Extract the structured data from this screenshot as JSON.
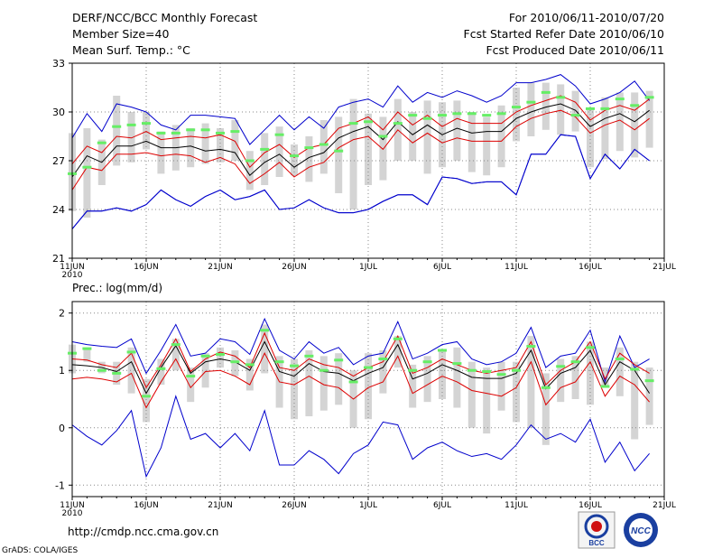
{
  "header": {
    "title": "DERF/NCC/BCC Monthly Forecast",
    "member_size": "Member Size=40",
    "variable": "Mean Surf. Temp.: °C",
    "period": "For 2010/06/11-2010/07/20",
    "started": "Fcst Started Refer Date 2010/06/10",
    "produced": "Fcst Produced Date 2010/06/11"
  },
  "footer": {
    "url": "http://cmdp.ncc.cma.gov.cn",
    "grads": "GrADS: COLA/IGES",
    "logo_bcc": "BCC",
    "logo_ncc": "NCC"
  },
  "colors": {
    "box": "#d4d4d4",
    "median": "#66ee66",
    "max_min": "#0000cc",
    "std": "#dd0000",
    "mean": "#000000",
    "grid": "#888888"
  },
  "chart_data": [
    {
      "type": "line",
      "title": "Mean Surf. Temp.: °C",
      "xtick_labels": [
        "11JUN",
        "16JUN",
        "21JUN",
        "26JUN",
        "1JUL",
        "6JUL",
        "11JUL",
        "16JUL",
        "21JUL"
      ],
      "year_label": "2010",
      "ylim": [
        21,
        33
      ],
      "yticks": [
        21,
        24,
        27,
        30,
        33
      ],
      "days": 40,
      "series": [
        {
          "name": "max",
          "values": [
            22.8,
            23.9,
            23.9,
            24.1,
            23.9,
            24.3,
            25.2,
            24.6,
            24.2,
            24.8,
            25.2,
            24.6,
            24.8,
            25.2,
            24.0,
            24.1,
            24.6,
            24.1,
            23.8,
            23.8,
            24.0,
            24.5,
            24.9,
            24.9,
            24.3,
            26.0,
            25.9,
            25.6,
            25.7,
            25.7,
            24.9,
            27.4,
            27.4,
            28.6,
            28.5,
            25.9,
            27.4,
            26.5,
            27.7,
            27.0
          ]
        },
        {
          "name": "max_upper",
          "values": [
            28.4,
            29.9,
            28.8,
            30.5,
            30.3,
            30.0,
            29.2,
            28.9,
            29.8,
            29.8,
            29.7,
            29.6,
            28.0,
            28.9,
            29.8,
            28.9,
            29.7,
            29.0,
            30.3,
            30.6,
            30.8,
            30.3,
            31.6,
            30.6,
            31.2,
            30.9,
            31.3,
            31.0,
            30.6,
            31.0,
            31.8,
            31.8,
            32.0,
            32.3,
            31.6,
            30.5,
            30.8,
            31.2,
            31.9,
            30.7
          ]
        },
        {
          "name": "min_lower",
          "values": [
            22.8,
            23.9,
            23.9,
            24.1,
            23.9,
            24.3,
            25.2,
            24.6,
            24.2,
            24.8,
            25.2,
            24.6,
            24.8,
            25.2,
            24.0,
            24.1,
            24.6,
            24.1,
            23.8,
            23.8,
            24.0,
            24.5,
            24.9,
            24.9,
            24.3,
            26.0,
            25.9,
            25.6,
            25.7,
            25.7,
            24.9,
            27.4,
            27.4,
            28.6,
            28.5,
            25.9,
            27.4,
            26.5,
            27.7,
            27.0
          ]
        },
        {
          "name": "mean_plus_std",
          "values": [
            26.8,
            27.9,
            27.5,
            28.5,
            28.4,
            28.8,
            28.3,
            28.4,
            28.5,
            28.4,
            28.6,
            28.2,
            26.6,
            27.5,
            28.0,
            27.2,
            27.8,
            28.0,
            29.0,
            29.3,
            29.7,
            28.9,
            30.0,
            29.2,
            29.8,
            29.1,
            29.6,
            29.3,
            29.3,
            29.3,
            30.0,
            30.4,
            30.7,
            31.0,
            30.6,
            29.5,
            30.1,
            30.4,
            30.1,
            30.8
          ]
        },
        {
          "name": "mean",
          "values": [
            26.0,
            27.3,
            26.9,
            27.9,
            27.9,
            28.2,
            27.8,
            27.8,
            27.9,
            27.6,
            27.7,
            27.5,
            26.1,
            26.9,
            27.4,
            26.6,
            27.2,
            27.5,
            28.4,
            28.8,
            29.1,
            28.3,
            29.4,
            28.6,
            29.2,
            28.6,
            29.0,
            28.7,
            28.8,
            28.8,
            29.6,
            30.0,
            30.3,
            30.5,
            30.1,
            29.1,
            29.6,
            29.9,
            29.4,
            30.1
          ]
        },
        {
          "name": "mean_minus_std",
          "values": [
            25.2,
            26.6,
            26.4,
            27.4,
            27.4,
            27.5,
            27.3,
            27.4,
            27.3,
            26.9,
            27.2,
            26.8,
            25.6,
            26.2,
            26.9,
            26.0,
            26.6,
            26.9,
            27.8,
            28.3,
            28.5,
            27.7,
            28.9,
            28.1,
            28.7,
            28.1,
            28.4,
            28.2,
            28.2,
            28.2,
            29.1,
            29.6,
            29.9,
            30.1,
            29.7,
            28.7,
            29.2,
            29.5,
            28.9,
            29.6
          ]
        }
      ],
      "box_low": [
        23.9,
        23.5,
        25.5,
        26.7,
        26.9,
        27.7,
        26.2,
        26.4,
        26.6,
        26.8,
        26.9,
        27.0,
        25.2,
        25.5,
        26.0,
        26.1,
        25.7,
        26.2,
        25.0,
        24.0,
        25.5,
        25.8,
        27.0,
        27.0,
        26.2,
        26.6,
        27.0,
        26.3,
        26.1,
        26.6,
        28.2,
        28.5,
        28.9,
        28.6,
        28.8,
        26.6,
        27.1,
        27.6,
        27.2,
        27.8
      ],
      "box_high": [
        28.7,
        29.0,
        28.3,
        31.0,
        30.0,
        30.0,
        28.8,
        29.2,
        29.0,
        29.3,
        29.0,
        29.5,
        27.6,
        28.7,
        29.1,
        28.0,
        28.5,
        29.5,
        29.7,
        30.8,
        29.9,
        29.7,
        30.8,
        30.0,
        30.7,
        30.6,
        30.7,
        30.0,
        29.7,
        30.4,
        31.5,
        31.8,
        31.8,
        31.7,
        31.3,
        30.2,
        30.9,
        31.2,
        31.2,
        31.3
      ],
      "median": [
        26.2,
        26.6,
        28.1,
        29.1,
        29.2,
        29.3,
        28.7,
        28.7,
        28.9,
        28.9,
        28.7,
        28.8,
        27.0,
        27.7,
        28.6,
        27.3,
        27.8,
        28.0,
        27.6,
        29.3,
        29.4,
        28.5,
        29.3,
        29.8,
        29.6,
        29.8,
        29.9,
        29.9,
        29.8,
        29.9,
        30.3,
        30.6,
        31.2,
        30.9,
        29.8,
        30.2,
        30.2,
        30.8,
        30.4,
        30.9
      ]
    },
    {
      "type": "line",
      "title": "Prec.: log(mm/d)",
      "xtick_labels": [
        "11JUN",
        "16JUN",
        "21JUN",
        "26JUN",
        "1JUL",
        "6JUL",
        "11JUL",
        "16JUL",
        "21JUL"
      ],
      "year_label": "2010",
      "ylim": [
        -1.2,
        2.2
      ],
      "yticks": [
        -1,
        0,
        1,
        2
      ],
      "days": 40,
      "series": [
        {
          "name": "max",
          "values": [
            1.5,
            1.45,
            1.42,
            1.4,
            1.55,
            0.95,
            1.35,
            1.8,
            1.25,
            1.3,
            1.55,
            1.5,
            1.28,
            1.9,
            1.35,
            1.2,
            1.5,
            1.3,
            1.4,
            1.1,
            1.25,
            1.3,
            1.85,
            1.2,
            1.3,
            1.45,
            1.5,
            1.2,
            1.1,
            1.15,
            1.3,
            1.75,
            1.05,
            1.25,
            1.3,
            1.7,
            0.8,
            1.6,
            1.05,
            1.2
          ]
        },
        {
          "name": "mean_plus_std",
          "values": [
            1.2,
            1.18,
            1.1,
            1.05,
            1.3,
            0.7,
            1.1,
            1.55,
            0.98,
            1.2,
            1.32,
            1.25,
            1.05,
            1.65,
            1.05,
            1.0,
            1.2,
            1.1,
            1.05,
            0.9,
            1.05,
            1.15,
            1.6,
            0.95,
            1.05,
            1.2,
            1.1,
            1.0,
            0.95,
            1.0,
            1.05,
            1.5,
            0.75,
            1.0,
            1.15,
            1.5,
            0.85,
            1.3,
            1.1,
            0.95
          ]
        },
        {
          "name": "mean",
          "values": [
            1.1,
            1.08,
            1.05,
            0.98,
            1.15,
            0.6,
            1.05,
            1.43,
            0.95,
            1.15,
            1.2,
            1.15,
            1.0,
            1.5,
            0.98,
            0.9,
            1.12,
            0.98,
            0.95,
            0.82,
            0.95,
            1.05,
            1.45,
            0.85,
            0.95,
            1.1,
            1.0,
            0.88,
            0.86,
            0.86,
            0.95,
            1.35,
            0.68,
            0.95,
            1.05,
            1.35,
            0.75,
            1.15,
            1.0,
            0.6
          ]
        },
        {
          "name": "mean_minus_std",
          "values": [
            0.85,
            0.88,
            0.85,
            0.8,
            0.95,
            0.35,
            0.8,
            1.2,
            0.7,
            0.98,
            1.0,
            0.9,
            0.75,
            1.3,
            0.8,
            0.75,
            0.9,
            0.75,
            0.7,
            0.5,
            0.7,
            0.8,
            1.25,
            0.6,
            0.75,
            0.9,
            0.8,
            0.65,
            0.6,
            0.55,
            0.7,
            1.15,
            0.4,
            0.7,
            0.8,
            1.15,
            0.55,
            0.9,
            0.75,
            0.45
          ]
        },
        {
          "name": "min",
          "values": [
            0.05,
            -0.15,
            -0.3,
            -0.05,
            0.3,
            -0.85,
            -0.35,
            0.55,
            -0.2,
            -0.1,
            -0.35,
            -0.1,
            -0.4,
            0.3,
            -0.65,
            -0.65,
            -0.4,
            -0.55,
            -0.8,
            -0.45,
            -0.3,
            0.1,
            0.05,
            -0.55,
            -0.35,
            -0.25,
            -0.4,
            -0.5,
            -0.45,
            -0.55,
            -0.3,
            0.05,
            -0.2,
            -0.1,
            -0.25,
            0.15,
            -0.6,
            -0.25,
            -0.75,
            -0.45
          ]
        }
      ],
      "box_low": [
        0.95,
        1.15,
        0.95,
        0.75,
        0.6,
        0.1,
        0.75,
        1.0,
        0.45,
        0.7,
        1.05,
        0.9,
        0.65,
        0.95,
        0.35,
        0.15,
        0.2,
        0.3,
        0.4,
        0.0,
        0.15,
        0.6,
        1.05,
        0.35,
        0.45,
        0.5,
        0.35,
        0.0,
        -0.1,
        0.3,
        0.1,
        0.0,
        -0.3,
        0.45,
        0.5,
        0.4,
        0.7,
        0.55,
        -0.2,
        0.05
      ],
      "box_high": [
        1.45,
        1.4,
        1.15,
        1.15,
        1.4,
        0.85,
        1.2,
        1.55,
        1.05,
        1.3,
        1.4,
        1.35,
        1.2,
        1.8,
        1.25,
        1.2,
        1.35,
        1.25,
        1.3,
        1.0,
        1.3,
        1.35,
        1.6,
        1.1,
        1.25,
        1.35,
        1.4,
        1.15,
        1.05,
        1.15,
        1.15,
        1.6,
        0.95,
        1.2,
        1.25,
        1.5,
        1.05,
        1.4,
        1.15,
        1.05
      ],
      "median": [
        1.3,
        1.38,
        1.0,
        0.95,
        1.32,
        0.55,
        1.03,
        1.45,
        0.9,
        1.25,
        1.28,
        1.15,
        1.1,
        1.7,
        1.15,
        1.08,
        1.25,
        1.0,
        1.18,
        0.8,
        1.05,
        1.2,
        1.55,
        1.0,
        1.15,
        1.35,
        1.12,
        1.0,
        0.98,
        0.93,
        1.0,
        1.42,
        0.7,
        1.07,
        1.15,
        1.4,
        0.72,
        1.2,
        1.02,
        0.82
      ]
    }
  ]
}
